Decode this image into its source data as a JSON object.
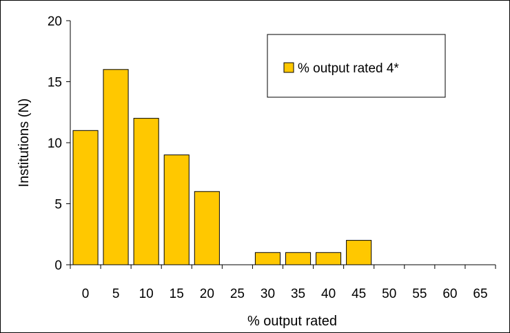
{
  "chart_data": {
    "type": "bar",
    "categories": [
      "0",
      "5",
      "10",
      "15",
      "20",
      "25",
      "30",
      "35",
      "40",
      "45",
      "50",
      "55",
      "60",
      "65"
    ],
    "series": [
      {
        "name": "% output rated 4*",
        "values": [
          11,
          16,
          12,
          9,
          6,
          0,
          1,
          1,
          1,
          2,
          0,
          0,
          0,
          0
        ]
      }
    ],
    "xlabel": "% output rated",
    "ylabel": "Institutions (N)",
    "ylim": [
      0,
      20
    ],
    "yticks": [
      0,
      5,
      10,
      15,
      20
    ],
    "grid": false,
    "legend_position": "top-right",
    "colors": {
      "bar_fill": "#FFC800",
      "bar_stroke": "#000000",
      "axis": "#000000"
    }
  }
}
